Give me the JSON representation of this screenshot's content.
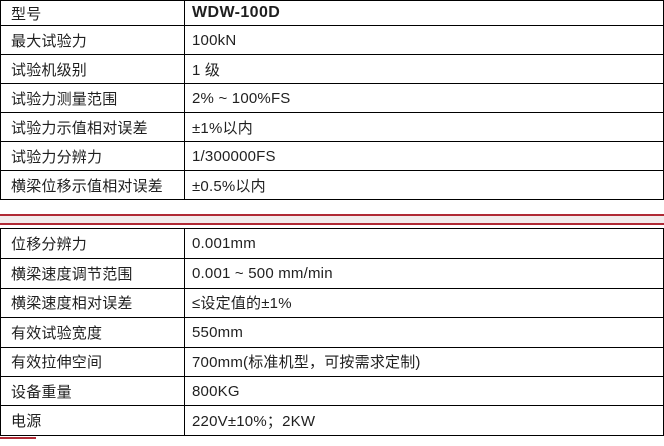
{
  "colors": {
    "red": "#b02a35",
    "band_fill": "#f2ecec",
    "border": "#000000",
    "text": "#1f1f1f"
  },
  "tables": {
    "top": {
      "rows": [
        {
          "label": "型号",
          "value": "WDW-100D",
          "bold": true
        },
        {
          "label": "最大试验力",
          "value": "100kN",
          "bold": false
        },
        {
          "label": "试验机级别",
          "value": "1 级",
          "bold": false
        },
        {
          "label": "试验力测量范围",
          "value": "2% ~ 100%FS",
          "bold": false
        },
        {
          "label": "试验力示值相对误差",
          "value": "±1%以内",
          "bold": false
        },
        {
          "label": "试验力分辨力",
          "value": "1/300000FS",
          "bold": false
        },
        {
          "label": "横梁位移示值相对误差",
          "value": "±0.5%以内",
          "bold": false
        }
      ]
    },
    "bottom": {
      "rows": [
        {
          "label": "位移分辨力",
          "value": "0.001mm",
          "bold": false
        },
        {
          "label": "横梁速度调节范围",
          "value": "0.001 ~ 500 mm/min",
          "bold": false
        },
        {
          "label": "横梁速度相对误差",
          "value": "≤设定值的±1%",
          "bold": false
        },
        {
          "label": "有效试验宽度",
          "value": "550mm",
          "bold": false
        },
        {
          "label": "有效拉伸空间",
          "value": "700mm(标准机型，可按需求定制)",
          "bold": false
        },
        {
          "label": "设备重量",
          "value": "800KG",
          "bold": false
        },
        {
          "label": "电源",
          "value": "220V±10%；2KW",
          "bold": false
        }
      ]
    }
  }
}
